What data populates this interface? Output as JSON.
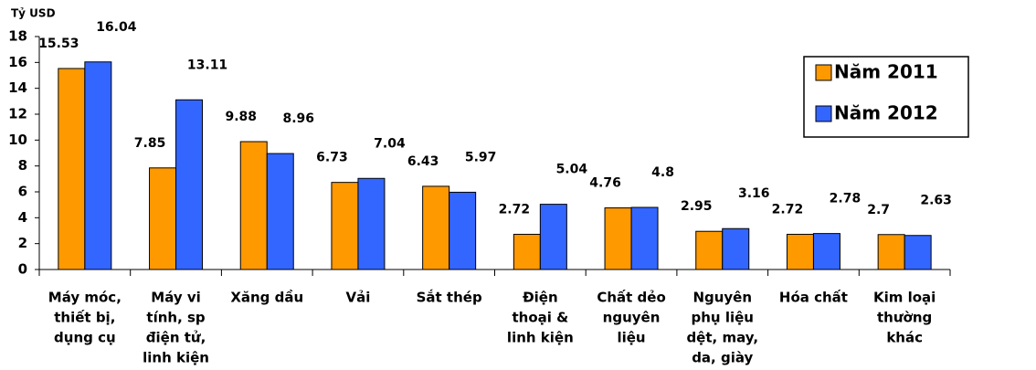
{
  "chart_data": {
    "type": "bar",
    "y_label": "Tỷ USD",
    "categories": [
      [
        "Máy móc,",
        "thiết bị,",
        "dụng cụ"
      ],
      [
        "Máy vi",
        "tính, sp",
        "điện tử,",
        "linh kiện"
      ],
      [
        "Xăng dầu"
      ],
      [
        "Vải"
      ],
      [
        "Sắt thép"
      ],
      [
        "Điện",
        "thoại &",
        "linh kiện"
      ],
      [
        "Chất dẻo",
        "nguyên",
        "liệu"
      ],
      [
        "Nguyên",
        "phụ liệu",
        "dệt, may,",
        "da, giày"
      ],
      [
        "Hóa chất"
      ],
      [
        "Kim loại",
        "thường",
        "khác"
      ]
    ],
    "series": [
      {
        "name": "Năm 2011",
        "color": "#ff9900",
        "values": [
          15.53,
          7.85,
          9.88,
          6.73,
          6.43,
          2.72,
          4.76,
          2.95,
          2.72,
          2.7
        ]
      },
      {
        "name": "Năm 2012",
        "color": "#3366ff",
        "values": [
          16.04,
          13.11,
          8.96,
          7.04,
          5.97,
          5.04,
          4.8,
          3.16,
          2.78,
          2.63
        ]
      }
    ],
    "ylim": [
      0,
      18
    ],
    "yticks": [
      0,
      2,
      4,
      6,
      8,
      10,
      12,
      14,
      16,
      18
    ],
    "legend": "upper right"
  }
}
